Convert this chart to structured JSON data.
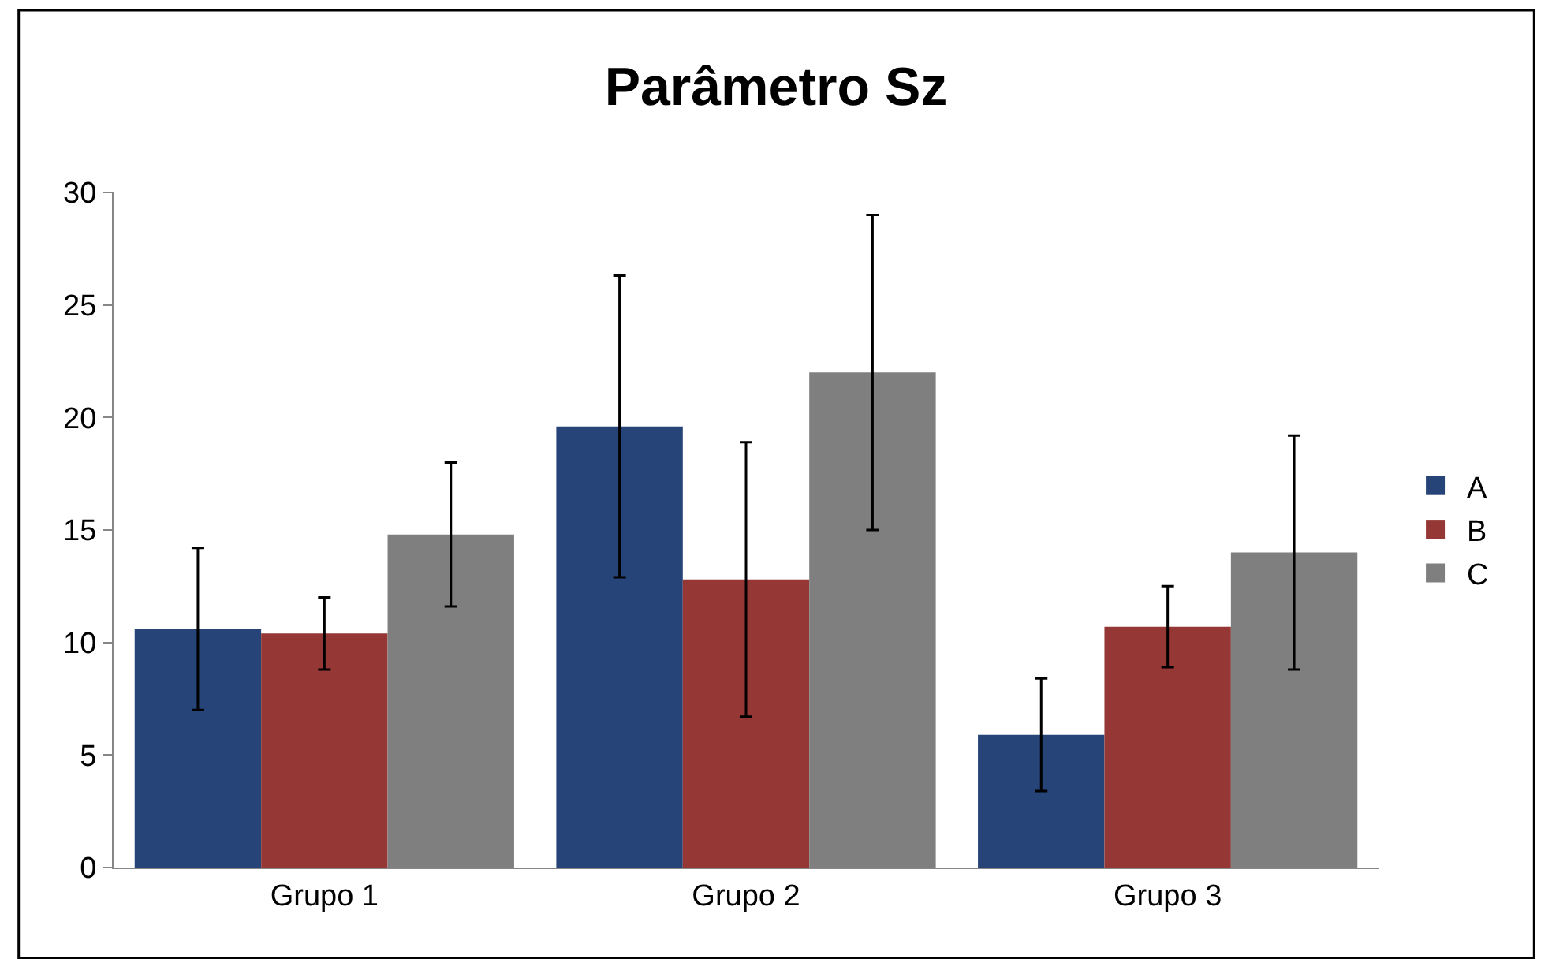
{
  "chart_data": {
    "type": "bar",
    "title": "Parâmetro Sz",
    "categories": [
      "Grupo 1",
      "Grupo 2",
      "Grupo 3"
    ],
    "series": [
      {
        "name": "A",
        "color": "#264478",
        "values": [
          10.6,
          19.6,
          5.9
        ],
        "errors": [
          3.6,
          6.7,
          2.5
        ]
      },
      {
        "name": "B",
        "color": "#953735",
        "values": [
          10.4,
          12.8,
          10.7
        ],
        "errors": [
          1.6,
          6.1,
          1.8
        ]
      },
      {
        "name": "C",
        "color": "#7f7f7f",
        "values": [
          14.8,
          22.0,
          14.0
        ],
        "errors": [
          3.2,
          7.0,
          5.2
        ]
      }
    ],
    "ylim": [
      0,
      30
    ],
    "yticks": [
      0,
      5,
      10,
      15,
      20,
      25,
      30
    ],
    "legend": "right"
  }
}
